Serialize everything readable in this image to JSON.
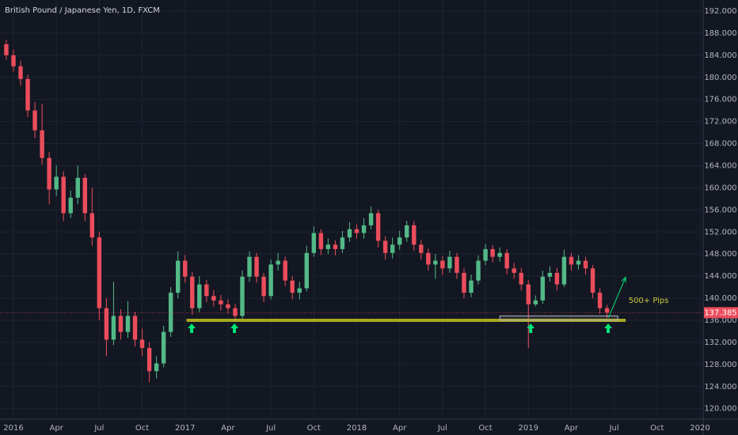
{
  "chart_data": {
    "type": "candlestick",
    "title": "British Pound / Japanese Yen, 1D, FXCM",
    "up_color": "#53b987",
    "down_color": "#eb4d5c",
    "x": [
      -0.5,
      0,
      0.5,
      1,
      1.5,
      2,
      2.5,
      3,
      3.5,
      4,
      4.5,
      5,
      5.5,
      6,
      6.5,
      7,
      7.5,
      8,
      8.5,
      9,
      9.5,
      10,
      10.5,
      11,
      11.5,
      12,
      12.5,
      13,
      13.5,
      14,
      14.5,
      15,
      15.5,
      16,
      16.5,
      17,
      17.5,
      18,
      18.5,
      19,
      19.5,
      20,
      20.5,
      21,
      21.5,
      22,
      22.5,
      23,
      23.5,
      24,
      24.5,
      25,
      25.5,
      26,
      26.5,
      27,
      27.5,
      28,
      28.5,
      29,
      29.5,
      30,
      30.5,
      31,
      31.5,
      32,
      32.5,
      33,
      33.5,
      34,
      34.5,
      35,
      35.5,
      36,
      36.5,
      37,
      37.5,
      38,
      38.5,
      39,
      39.5,
      40,
      40.5,
      41,
      41.5
    ],
    "open": [
      186,
      184,
      182,
      179.7,
      174,
      170.4,
      165.4,
      159.7,
      162,
      155.4,
      158.2,
      161.8,
      155.4,
      151,
      138.2,
      132.5,
      136.8,
      133.9,
      136.8,
      132.5,
      131,
      126.8,
      128.2,
      133.9,
      141,
      146.8,
      143.9,
      138.2,
      142.5,
      140.4,
      139.6,
      138.9,
      138.2,
      136.8,
      143.9,
      147.5,
      143.9,
      140.4,
      146.1,
      146.8,
      143.2,
      141,
      141.8,
      148.2,
      151.8,
      148.9,
      149.7,
      148.9,
      151,
      152.5,
      151.8,
      153.2,
      155.4,
      150.4,
      148.2,
      149.7,
      151,
      153.2,
      149.7,
      148.2,
      146.1,
      146.8,
      145.4,
      147.5,
      144.6,
      141,
      143.2,
      146.8,
      148.9,
      147.5,
      148.2,
      145.4,
      144.6,
      142.5,
      138.9,
      139.6,
      143.9,
      144.6,
      142.5,
      147.5,
      146.1,
      146.8,
      145.4,
      141,
      138.2
    ],
    "high": [
      186.8,
      185,
      183,
      180.5,
      175.5,
      175.2,
      166.5,
      164,
      163,
      159.5,
      164,
      162.5,
      160,
      152,
      140,
      143,
      138,
      139.5,
      137.5,
      134.5,
      132,
      129.5,
      135,
      142,
      148.5,
      147.8,
      144.8,
      144,
      143.3,
      141.5,
      140.6,
      139.8,
      139,
      145,
      148.5,
      148.2,
      144.6,
      147,
      148.2,
      147.5,
      144,
      143,
      149.5,
      153,
      152.5,
      150.8,
      150.5,
      152.2,
      153.8,
      153.4,
      154.5,
      156.6,
      156,
      151.2,
      151,
      152.2,
      154,
      154,
      150.5,
      149,
      148,
      147.6,
      148.6,
      148.2,
      145.4,
      144.3,
      147.8,
      149.8,
      149.6,
      149.2,
      148.9,
      146.4,
      145.5,
      143.3,
      140.5,
      145,
      145.8,
      145.5,
      148.8,
      148.2,
      147.8,
      147.5,
      146,
      141.8,
      138.8
    ],
    "low": [
      183.2,
      181,
      178.5,
      172.8,
      169,
      164.2,
      157,
      158.5,
      154,
      154.5,
      157,
      154,
      149.5,
      136,
      129.5,
      131.5,
      132.5,
      132.8,
      131.3,
      129.5,
      124.8,
      125.5,
      127.5,
      133,
      140,
      142.8,
      137,
      137.5,
      139.3,
      138.5,
      137.8,
      137.2,
      135.8,
      136.2,
      143,
      142.8,
      139.3,
      139.8,
      145,
      142.2,
      139.8,
      139.8,
      141.2,
      147.5,
      147.8,
      148,
      147.8,
      148.2,
      150.2,
      150.8,
      150.8,
      152.5,
      149.2,
      147,
      147.2,
      148.8,
      150.2,
      148.6,
      147,
      145,
      143.5,
      144.2,
      144.6,
      143.5,
      140,
      140.2,
      142.5,
      146,
      146.5,
      146.6,
      144.3,
      143.5,
      141.4,
      131,
      138.5,
      139,
      143,
      141.4,
      142,
      145,
      145.2,
      144.3,
      140,
      137.2,
      136.4
    ],
    "close": [
      184,
      182,
      179.7,
      174,
      170.4,
      165.4,
      159.7,
      162,
      155.4,
      158.2,
      161.8,
      155.4,
      151,
      138.2,
      132.5,
      136.8,
      133.9,
      136.8,
      132.5,
      131,
      126.8,
      128.2,
      133.9,
      141,
      146.8,
      143.9,
      138.2,
      142.5,
      140.4,
      139.6,
      138.9,
      138.2,
      136.8,
      143.9,
      147.5,
      143.9,
      140.4,
      146.1,
      146.8,
      143.2,
      141,
      141.8,
      148.2,
      151.8,
      148.9,
      149.7,
      148.9,
      151,
      152.5,
      151.8,
      153.2,
      155.4,
      150.4,
      148.2,
      149.7,
      151,
      153.2,
      149.7,
      148.2,
      146.1,
      146.8,
      145.4,
      147.5,
      144.6,
      141,
      143.2,
      146.8,
      148.9,
      147.5,
      148.2,
      145.4,
      144.6,
      142.5,
      138.9,
      139.6,
      143.9,
      144.6,
      142.5,
      147.5,
      146.1,
      146.8,
      145.4,
      141,
      138.2,
      137.385
    ],
    "last_price": 137.385,
    "support": 136,
    "arrows_x": [
      12.46,
      15.45,
      36.16,
      41.58
    ],
    "zone": {
      "x": [
        34,
        42.25
      ],
      "y": [
        136,
        136.8
      ]
    },
    "projection": {
      "x": [
        41.6,
        42.8
      ],
      "y": [
        136.5,
        143.8
      ]
    },
    "annotation": "500+ Pips",
    "annotation_pos": [
      43,
      139.6
    ],
    "xlim": [
      -0.94,
      48.22
    ],
    "xticks": [
      {
        "value": 0,
        "label": "2016"
      },
      {
        "value": 3,
        "label": "Apr"
      },
      {
        "value": 6,
        "label": "Jul"
      },
      {
        "value": 9,
        "label": "Oct"
      },
      {
        "value": 12,
        "label": "2017"
      },
      {
        "value": 15,
        "label": "Apr"
      },
      {
        "value": 18,
        "label": "Jul"
      },
      {
        "value": 21,
        "label": "Oct"
      },
      {
        "value": 24,
        "label": "2018"
      },
      {
        "value": 27,
        "label": "Apr"
      },
      {
        "value": 30,
        "label": "Jul"
      },
      {
        "value": 33,
        "label": "Oct"
      },
      {
        "value": 36,
        "label": "2019"
      },
      {
        "value": 39,
        "label": "Apr"
      },
      {
        "value": 42,
        "label": "Jul"
      },
      {
        "value": 45,
        "label": "Oct"
      },
      {
        "value": 48,
        "label": "2020"
      }
    ],
    "ylim": [
      118.1,
      194
    ],
    "yticks": [
      {
        "value": 120,
        "label": "120.000"
      },
      {
        "value": 124,
        "label": "124.000"
      },
      {
        "value": 128,
        "label": "128.000"
      },
      {
        "value": 132,
        "label": "132.000"
      },
      {
        "value": 136,
        "label": "136.000"
      },
      {
        "value": 140,
        "label": "140.000"
      },
      {
        "value": 144,
        "label": "144.000"
      },
      {
        "value": 148,
        "label": "148.000"
      },
      {
        "value": 152,
        "label": "152.000"
      },
      {
        "value": 156,
        "label": "156.000"
      },
      {
        "value": 160,
        "label": "160.000"
      },
      {
        "value": 164,
        "label": "164.000"
      },
      {
        "value": 168,
        "label": "168.000"
      },
      {
        "value": 172,
        "label": "172.000"
      },
      {
        "value": 176,
        "label": "176.000"
      },
      {
        "value": 180,
        "label": "180.000"
      },
      {
        "value": 184,
        "label": "184.000"
      },
      {
        "value": 188,
        "label": "188.000"
      },
      {
        "value": 192,
        "label": "192.000"
      }
    ],
    "grid": true
  }
}
